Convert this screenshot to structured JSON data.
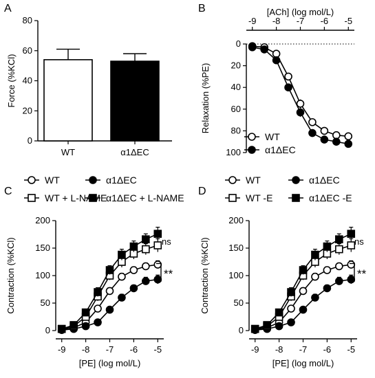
{
  "chart_data": [
    {
      "panel": "A",
      "type": "bar",
      "ylabel": "Force (%KCl)",
      "ylim": [
        0,
        80
      ],
      "yticks": [
        0,
        20,
        40,
        60,
        80
      ],
      "categories": [
        "WT",
        "α1ΔEC"
      ],
      "values": [
        54,
        53
      ],
      "errors": [
        7,
        5
      ],
      "fills": [
        "#ffffff",
        "#000000"
      ]
    },
    {
      "panel": "B",
      "type": "line",
      "xlabel": "[ACh] (log mol/L)",
      "ylabel": "Relaxation (%PE)",
      "xlim": [
        -9.25,
        -4.75
      ],
      "ylim": [
        0,
        100
      ],
      "y_inverted": true,
      "x_axis_position": "top",
      "xticks": [
        -9,
        -8,
        -7,
        -6,
        -5
      ],
      "yticks": [
        0,
        20,
        40,
        60,
        80,
        100
      ],
      "x": [
        -9,
        -8.5,
        -8,
        -7.5,
        -7,
        -6.5,
        -6,
        -5.5,
        -5
      ],
      "legend": "bottom-left",
      "series": [
        {
          "name": "WT",
          "marker": "circle-open",
          "values": [
            2,
            3,
            9,
            30,
            55,
            72,
            80,
            84,
            85
          ],
          "errors": [
            1,
            1,
            2,
            3,
            4,
            3,
            3,
            2,
            2
          ]
        },
        {
          "name": "α1ΔEC",
          "marker": "circle-filled",
          "values": [
            3,
            5,
            15,
            40,
            63,
            82,
            88,
            90,
            92
          ],
          "errors": [
            1,
            1,
            3,
            3,
            4,
            3,
            2,
            2,
            2
          ]
        }
      ]
    },
    {
      "panel": "C",
      "type": "line",
      "xlabel": "[PE] (log mol/L)",
      "ylabel": "Contraction (%KCl)",
      "xlim": [
        -9.25,
        -4.75
      ],
      "ylim": [
        0,
        200
      ],
      "xticks": [
        -9,
        -8,
        -7,
        -6,
        -5
      ],
      "yticks": [
        0,
        50,
        100,
        150,
        200
      ],
      "x": [
        -9,
        -8.5,
        -8,
        -7.5,
        -7,
        -6.5,
        -6,
        -5.5,
        -5
      ],
      "legend": "top",
      "series": [
        {
          "name": "WT",
          "marker": "circle-open",
          "values": [
            2,
            5,
            15,
            40,
            72,
            98,
            110,
            117,
            120
          ],
          "errors": [
            1,
            2,
            3,
            5,
            6,
            6,
            6,
            6,
            7
          ]
        },
        {
          "name": "α1ΔEC",
          "marker": "circle-filled",
          "values": [
            1,
            3,
            8,
            15,
            38,
            60,
            77,
            90,
            93
          ],
          "errors": [
            1,
            1,
            2,
            3,
            5,
            6,
            6,
            7,
            8
          ]
        },
        {
          "name": "WT + L-NAME",
          "marker": "square-open",
          "values": [
            3,
            8,
            25,
            62,
            100,
            125,
            140,
            148,
            155
          ],
          "errors": [
            1,
            3,
            5,
            8,
            8,
            10,
            10,
            10,
            12
          ]
        },
        {
          "name": "α1ΔEC + L-NAME",
          "marker": "square-filled",
          "values": [
            3,
            10,
            33,
            70,
            110,
            138,
            153,
            166,
            176
          ],
          "errors": [
            1,
            3,
            5,
            8,
            8,
            10,
            10,
            10,
            12
          ]
        }
      ],
      "annotations": [
        "ns",
        "**"
      ]
    },
    {
      "panel": "D",
      "type": "line",
      "xlabel": "[PE] (log mol/L)",
      "ylabel": "Contraction (%KCl)",
      "xlim": [
        -9.25,
        -4.75
      ],
      "ylim": [
        0,
        200
      ],
      "xticks": [
        -9,
        -8,
        -7,
        -6,
        -5
      ],
      "yticks": [
        0,
        50,
        100,
        150,
        200
      ],
      "x": [
        -9,
        -8.5,
        -8,
        -7.5,
        -7,
        -6.5,
        -6,
        -5.5,
        -5
      ],
      "legend": "top",
      "series": [
        {
          "name": "WT",
          "marker": "circle-open",
          "values": [
            2,
            5,
            15,
            40,
            72,
            98,
            110,
            117,
            120
          ],
          "errors": [
            1,
            2,
            3,
            5,
            6,
            6,
            6,
            6,
            7
          ]
        },
        {
          "name": "α1ΔEC",
          "marker": "circle-filled",
          "values": [
            1,
            3,
            8,
            15,
            38,
            60,
            77,
            90,
            93
          ],
          "errors": [
            1,
            1,
            2,
            3,
            5,
            6,
            6,
            7,
            8
          ]
        },
        {
          "name": "WT -E",
          "marker": "square-open",
          "values": [
            3,
            8,
            25,
            62,
            100,
            125,
            140,
            148,
            155
          ],
          "errors": [
            1,
            3,
            5,
            8,
            8,
            10,
            10,
            10,
            12
          ]
        },
        {
          "name": "α1ΔEC -E",
          "marker": "square-filled",
          "values": [
            3,
            10,
            33,
            70,
            110,
            138,
            153,
            166,
            176
          ],
          "errors": [
            1,
            3,
            5,
            8,
            8,
            10,
            10,
            10,
            12
          ]
        }
      ],
      "annotations": [
        "ns",
        "**"
      ]
    }
  ]
}
